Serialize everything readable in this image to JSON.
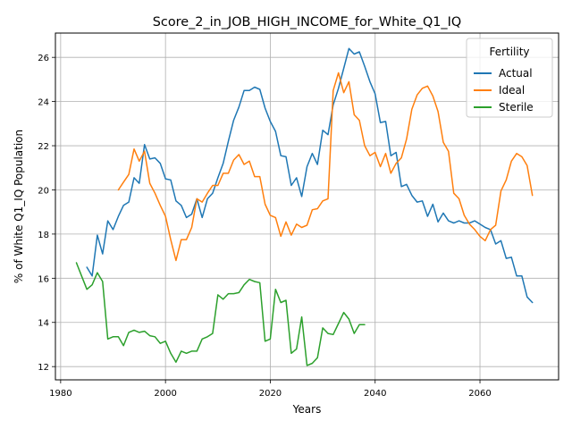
{
  "chart_data": {
    "type": "line",
    "title": "Score_2_in_JOB_HIGH_INCOME_for_White_Q1_IQ",
    "xlabel": "Years",
    "ylabel": "% of White Q1_IQ Population",
    "xlim": [
      1979,
      2075
    ],
    "ylim": [
      11.4,
      27.1
    ],
    "xticks": [
      1980,
      2000,
      2020,
      2040,
      2060
    ],
    "yticks": [
      12,
      14,
      16,
      18,
      20,
      22,
      24,
      26
    ],
    "grid": true,
    "legend": {
      "title": "Fertility",
      "placement": "top-right"
    },
    "series": [
      {
        "name": "Actual",
        "color": "#1f77b4",
        "x": [
          1985,
          1986,
          1987,
          1988,
          1989,
          1990,
          1991,
          1992,
          1993,
          1994,
          1995,
          1996,
          1997,
          1998,
          1999,
          2000,
          2001,
          2002,
          2003,
          2004,
          2005,
          2006,
          2007,
          2008,
          2009,
          2010,
          2011,
          2012,
          2013,
          2014,
          2015,
          2016,
          2017,
          2018,
          2019,
          2020,
          2021,
          2022,
          2023,
          2024,
          2025,
          2026,
          2027,
          2028,
          2029,
          2030,
          2031,
          2032,
          2033,
          2034,
          2035,
          2036,
          2037,
          2038,
          2039,
          2040,
          2041,
          2042,
          2043,
          2044,
          2045,
          2046,
          2047,
          2048,
          2049,
          2050,
          2051,
          2052,
          2053,
          2054,
          2055,
          2056,
          2057,
          2058,
          2059,
          2060,
          2061,
          2062,
          2063,
          2064,
          2065,
          2066,
          2067,
          2068,
          2069,
          2070
        ],
        "y": [
          16.5,
          16.1,
          17.95,
          17.1,
          18.6,
          18.2,
          18.8,
          19.3,
          19.45,
          20.55,
          20.3,
          22.05,
          21.4,
          21.45,
          21.2,
          20.5,
          20.45,
          19.5,
          19.3,
          18.75,
          18.9,
          19.6,
          18.75,
          19.6,
          19.85,
          20.55,
          21.2,
          22.2,
          23.15,
          23.75,
          24.5,
          24.5,
          24.65,
          24.55,
          23.7,
          23.1,
          22.65,
          21.55,
          21.5,
          20.2,
          20.55,
          19.7,
          21.05,
          21.65,
          21.15,
          22.7,
          22.5,
          23.85,
          24.6,
          25.5,
          26.4,
          26.15,
          26.25,
          25.6,
          24.9,
          24.35,
          23.05,
          23.1,
          21.55,
          21.7,
          20.15,
          20.25,
          19.75,
          19.45,
          19.5,
          18.8,
          19.35,
          18.55,
          18.95,
          18.6,
          18.5,
          18.6,
          18.5,
          18.5,
          18.6,
          18.45,
          18.3,
          18.2,
          17.55,
          17.7,
          16.9,
          16.95,
          16.1,
          16.1,
          15.15,
          14.9
        ]
      },
      {
        "name": "Ideal",
        "color": "#ff7f0e",
        "x": [
          1991,
          1992,
          1993,
          1994,
          1995,
          1996,
          1997,
          1998,
          1999,
          2000,
          2001,
          2002,
          2003,
          2004,
          2005,
          2006,
          2007,
          2008,
          2009,
          2010,
          2011,
          2012,
          2013,
          2014,
          2015,
          2016,
          2017,
          2018,
          2019,
          2020,
          2021,
          2022,
          2023,
          2024,
          2025,
          2026,
          2027,
          2028,
          2029,
          2030,
          2031,
          2032,
          2033,
          2034,
          2035,
          2036,
          2037,
          2038,
          2039,
          2040,
          2041,
          2042,
          2043,
          2044,
          2045,
          2046,
          2047,
          2048,
          2049,
          2050,
          2051,
          2052,
          2053,
          2054,
          2055,
          2056,
          2057,
          2058,
          2059,
          2060,
          2061,
          2062,
          2063,
          2064,
          2065,
          2066,
          2067,
          2068,
          2069,
          2070
        ],
        "y": [
          20.0,
          20.35,
          20.7,
          21.85,
          21.3,
          21.75,
          20.3,
          19.85,
          19.3,
          18.8,
          17.75,
          16.8,
          17.75,
          17.75,
          18.3,
          19.6,
          19.45,
          19.85,
          20.2,
          20.2,
          20.75,
          20.75,
          21.35,
          21.6,
          21.15,
          21.3,
          20.6,
          20.6,
          19.35,
          18.85,
          18.75,
          17.9,
          18.55,
          17.95,
          18.45,
          18.3,
          18.4,
          19.1,
          19.15,
          19.5,
          19.6,
          24.5,
          25.3,
          24.4,
          24.9,
          23.4,
          23.15,
          22.0,
          21.55,
          21.7,
          21.05,
          21.65,
          20.75,
          21.2,
          21.45,
          22.3,
          23.65,
          24.3,
          24.6,
          24.7,
          24.25,
          23.55,
          22.15,
          21.75,
          19.85,
          19.6,
          18.85,
          18.45,
          18.2,
          17.9,
          17.7,
          18.2,
          18.4,
          19.95,
          20.45,
          21.3,
          21.65,
          21.5,
          21.1,
          19.75
        ]
      },
      {
        "name": "Sterile",
        "color": "#2ca02c",
        "x": [
          1983,
          1984,
          1985,
          1986,
          1987,
          1988,
          1989,
          1990,
          1991,
          1992,
          1993,
          1994,
          1995,
          1996,
          1997,
          1998,
          1999,
          2000,
          2001,
          2002,
          2003,
          2004,
          2005,
          2006,
          2007,
          2008,
          2009,
          2010,
          2011,
          2012,
          2013,
          2014,
          2015,
          2016,
          2017,
          2018,
          2019,
          2020,
          2021,
          2022,
          2023,
          2024,
          2025,
          2026,
          2027,
          2028,
          2029,
          2030,
          2031,
          2032,
          2033,
          2034,
          2035,
          2036,
          2037,
          2038
        ],
        "y": [
          16.7,
          16.1,
          15.5,
          15.7,
          16.25,
          15.85,
          13.25,
          13.35,
          13.35,
          12.95,
          13.55,
          13.65,
          13.55,
          13.6,
          13.4,
          13.35,
          13.05,
          13.15,
          12.6,
          12.2,
          12.7,
          12.6,
          12.7,
          12.7,
          13.25,
          13.35,
          13.5,
          15.25,
          15.05,
          15.3,
          15.3,
          15.35,
          15.7,
          15.95,
          15.85,
          15.8,
          13.15,
          13.25,
          15.5,
          14.9,
          15.0,
          12.6,
          12.8,
          14.25,
          12.05,
          12.15,
          12.4,
          13.75,
          13.5,
          13.45,
          13.95,
          14.45,
          14.15,
          13.5,
          13.9,
          13.9
        ]
      }
    ]
  }
}
